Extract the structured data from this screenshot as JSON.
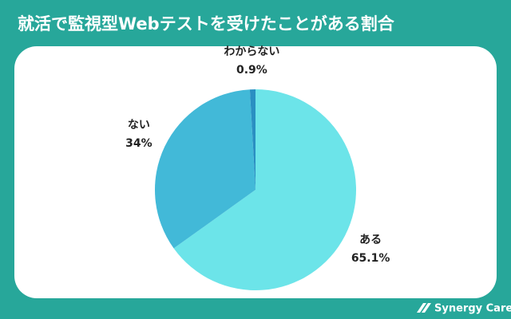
{
  "chart_data": {
    "type": "pie",
    "title": "就活で監視型Webテストを受けたことがある割合",
    "categories": [
      "ある",
      "ない",
      "わからない"
    ],
    "values": [
      65.1,
      34,
      0.9
    ],
    "value_labels": [
      "65.1%",
      "34%",
      "0.9%"
    ],
    "colors": [
      "#6ce4e9",
      "#42b9d8",
      "#2a8fc2"
    ]
  },
  "brand": "Synergy Career"
}
